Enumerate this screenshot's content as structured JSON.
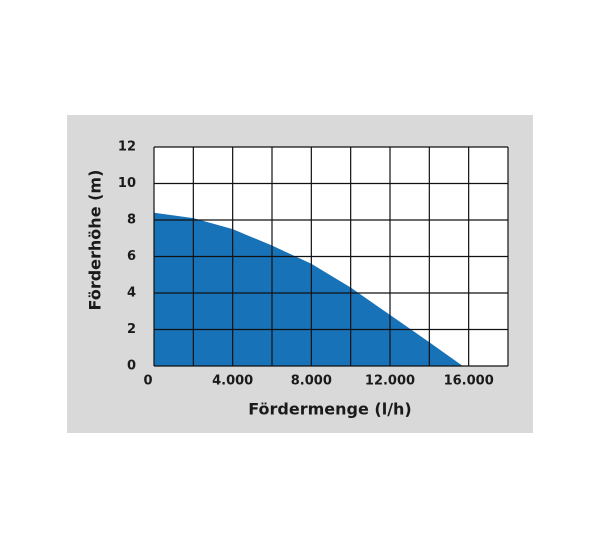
{
  "chart_data": {
    "type": "area",
    "x_label": "Fördermenge (l/h)",
    "y_label": "Förderhöhe (m)",
    "x": [
      0,
      2000,
      4000,
      6000,
      8000,
      10000,
      12000,
      14000,
      15700
    ],
    "series": [
      {
        "name": "Förderhöhe",
        "color": "#1872b8",
        "values": [
          8.4,
          8.1,
          7.5,
          6.6,
          5.6,
          4.3,
          2.8,
          1.3,
          0
        ]
      }
    ],
    "xlim": [
      0,
      18000
    ],
    "xticks": [
      0,
      {
        "value": 4000,
        "label": "4.000"
      },
      {
        "value": 8000,
        "label": "8.000"
      },
      {
        "value": 12000,
        "label": "12.000"
      },
      {
        "value": 16000,
        "label": "16.000"
      }
    ],
    "xgrid": [
      2000,
      6000,
      10000,
      14000,
      18000
    ],
    "ylim": [
      0,
      12
    ],
    "yticks": [
      0,
      2,
      4,
      6,
      8,
      10,
      12
    ],
    "grid": true
  }
}
